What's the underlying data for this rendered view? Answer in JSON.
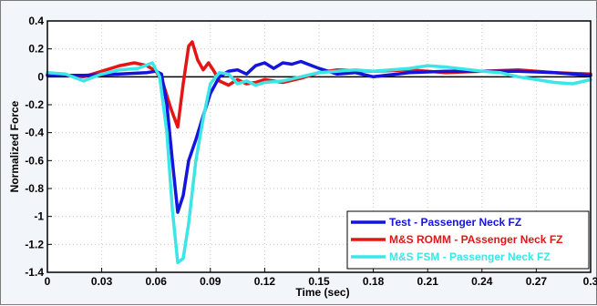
{
  "chart_data": {
    "type": "line",
    "title": "",
    "xlabel": "Time (sec)",
    "ylabel": "Normalized Force",
    "xlim": [
      0,
      0.3
    ],
    "ylim": [
      -1.4,
      0.4
    ],
    "xticks": [
      "0",
      "0.03",
      "0.06",
      "0.09",
      "0.12",
      "0.15",
      "0.18",
      "0.21",
      "0.24",
      "0.27",
      "0.3"
    ],
    "yticks": [
      "0.4",
      "0.2",
      "0",
      "-0.2",
      "-0.4",
      "-0.6",
      "-0.8",
      "-1",
      "-1.2",
      "-1.4"
    ],
    "grid": true,
    "legend_position": "bottom-right",
    "series": [
      {
        "name": "Test - Passenger Neck FZ",
        "color": "#1414dc",
        "points": [
          [
            0,
            0.01
          ],
          [
            0.02,
            0.01
          ],
          [
            0.04,
            0.02
          ],
          [
            0.055,
            0.03
          ],
          [
            0.06,
            0.04
          ],
          [
            0.063,
            0.02
          ],
          [
            0.066,
            -0.2
          ],
          [
            0.069,
            -0.6
          ],
          [
            0.072,
            -0.97
          ],
          [
            0.075,
            -0.85
          ],
          [
            0.078,
            -0.6
          ],
          [
            0.082,
            -0.45
          ],
          [
            0.086,
            -0.28
          ],
          [
            0.09,
            -0.12
          ],
          [
            0.095,
            0
          ],
          [
            0.1,
            0.04
          ],
          [
            0.105,
            0.05
          ],
          [
            0.11,
            0.02
          ],
          [
            0.115,
            0.08
          ],
          [
            0.12,
            0.1
          ],
          [
            0.125,
            0.06
          ],
          [
            0.13,
            0.1
          ],
          [
            0.135,
            0.09
          ],
          [
            0.14,
            0.11
          ],
          [
            0.15,
            0.06
          ],
          [
            0.16,
            0.02
          ],
          [
            0.17,
            0.03
          ],
          [
            0.18,
            0
          ],
          [
            0.2,
            0.03
          ],
          [
            0.22,
            0.04
          ],
          [
            0.24,
            0.04
          ],
          [
            0.26,
            0.04
          ],
          [
            0.28,
            0.03
          ],
          [
            0.3,
            0.01
          ]
        ]
      },
      {
        "name": "M&S ROMM - PAssenger Neck FZ",
        "color": "#e61414",
        "points": [
          [
            0,
            0.02
          ],
          [
            0.01,
            0.01
          ],
          [
            0.02,
            0
          ],
          [
            0.03,
            0.04
          ],
          [
            0.04,
            0.08
          ],
          [
            0.048,
            0.1
          ],
          [
            0.055,
            0.08
          ],
          [
            0.06,
            0.04
          ],
          [
            0.064,
            -0.05
          ],
          [
            0.068,
            -0.22
          ],
          [
            0.072,
            -0.36
          ],
          [
            0.075,
            -0.05
          ],
          [
            0.078,
            0.22
          ],
          [
            0.08,
            0.25
          ],
          [
            0.083,
            0.12
          ],
          [
            0.086,
            0.05
          ],
          [
            0.089,
            0.1
          ],
          [
            0.092,
            0.04
          ],
          [
            0.095,
            -0.03
          ],
          [
            0.1,
            -0.06
          ],
          [
            0.105,
            -0.02
          ],
          [
            0.11,
            -0.05
          ],
          [
            0.115,
            -0.04
          ],
          [
            0.12,
            -0.02
          ],
          [
            0.13,
            -0.04
          ],
          [
            0.14,
            -0.01
          ],
          [
            0.15,
            0.03
          ],
          [
            0.16,
            0.05
          ],
          [
            0.18,
            0.04
          ],
          [
            0.2,
            0.05
          ],
          [
            0.22,
            0.03
          ],
          [
            0.24,
            0.04
          ],
          [
            0.26,
            0.05
          ],
          [
            0.28,
            0.03
          ],
          [
            0.3,
            0.02
          ]
        ]
      },
      {
        "name": "M&S FSM - Passenger Neck FZ",
        "color": "#3ce6e6",
        "points": [
          [
            0,
            0.03
          ],
          [
            0.01,
            0.02
          ],
          [
            0.02,
            -0.03
          ],
          [
            0.03,
            0.02
          ],
          [
            0.04,
            0.05
          ],
          [
            0.05,
            0.06
          ],
          [
            0.058,
            0.1
          ],
          [
            0.062,
            0
          ],
          [
            0.066,
            -0.4
          ],
          [
            0.069,
            -0.95
          ],
          [
            0.072,
            -1.33
          ],
          [
            0.075,
            -1.3
          ],
          [
            0.078,
            -1.05
          ],
          [
            0.082,
            -0.6
          ],
          [
            0.086,
            -0.3
          ],
          [
            0.09,
            -0.05
          ],
          [
            0.095,
            0.03
          ],
          [
            0.1,
            0.02
          ],
          [
            0.105,
            -0.05
          ],
          [
            0.11,
            -0.03
          ],
          [
            0.115,
            -0.06
          ],
          [
            0.12,
            -0.04
          ],
          [
            0.13,
            -0.03
          ],
          [
            0.14,
            0
          ],
          [
            0.15,
            0.03
          ],
          [
            0.16,
            0.04
          ],
          [
            0.17,
            0.05
          ],
          [
            0.18,
            0.04
          ],
          [
            0.2,
            0.06
          ],
          [
            0.21,
            0.08
          ],
          [
            0.22,
            0.07
          ],
          [
            0.24,
            0.04
          ],
          [
            0.25,
            0.03
          ],
          [
            0.26,
            0
          ],
          [
            0.27,
            -0.02
          ],
          [
            0.28,
            -0.04
          ],
          [
            0.29,
            -0.05
          ],
          [
            0.3,
            -0.02
          ]
        ]
      }
    ]
  }
}
